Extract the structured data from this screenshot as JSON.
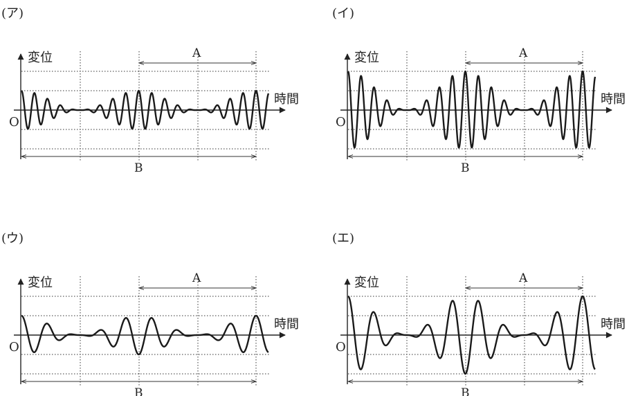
{
  "panels": [
    {
      "id": "a",
      "label": "(ア)",
      "ylabel": "変位",
      "xlabel": "時間",
      "origin": "O",
      "labelA": "A",
      "labelB": "B",
      "wave": {
        "f_carrier": 18,
        "f_mod": 2,
        "dc": 0.5,
        "amp": 0.5
      }
    },
    {
      "id": "b",
      "label": "(イ)",
      "ylabel": "変位",
      "xlabel": "時間",
      "origin": "O",
      "labelA": "A",
      "labelB": "B",
      "wave": {
        "f_carrier": 18,
        "f_mod": 2,
        "dc": 1.0,
        "amp": 1.0
      }
    },
    {
      "id": "c",
      "label": "(ウ)",
      "ylabel": "変位",
      "xlabel": "時間",
      "origin": "O",
      "labelA": "A",
      "labelB": "B",
      "wave": {
        "f_carrier": 9,
        "f_mod": 2,
        "dc": 0.5,
        "amp": 0.5
      }
    },
    {
      "id": "d",
      "label": "(エ)",
      "ylabel": "変位",
      "xlabel": "時間",
      "origin": "O",
      "labelA": "A",
      "labelB": "B",
      "wave": {
        "f_carrier": 9,
        "f_mod": 2,
        "dc": 1.0,
        "amp": 1.0
      }
    }
  ]
}
